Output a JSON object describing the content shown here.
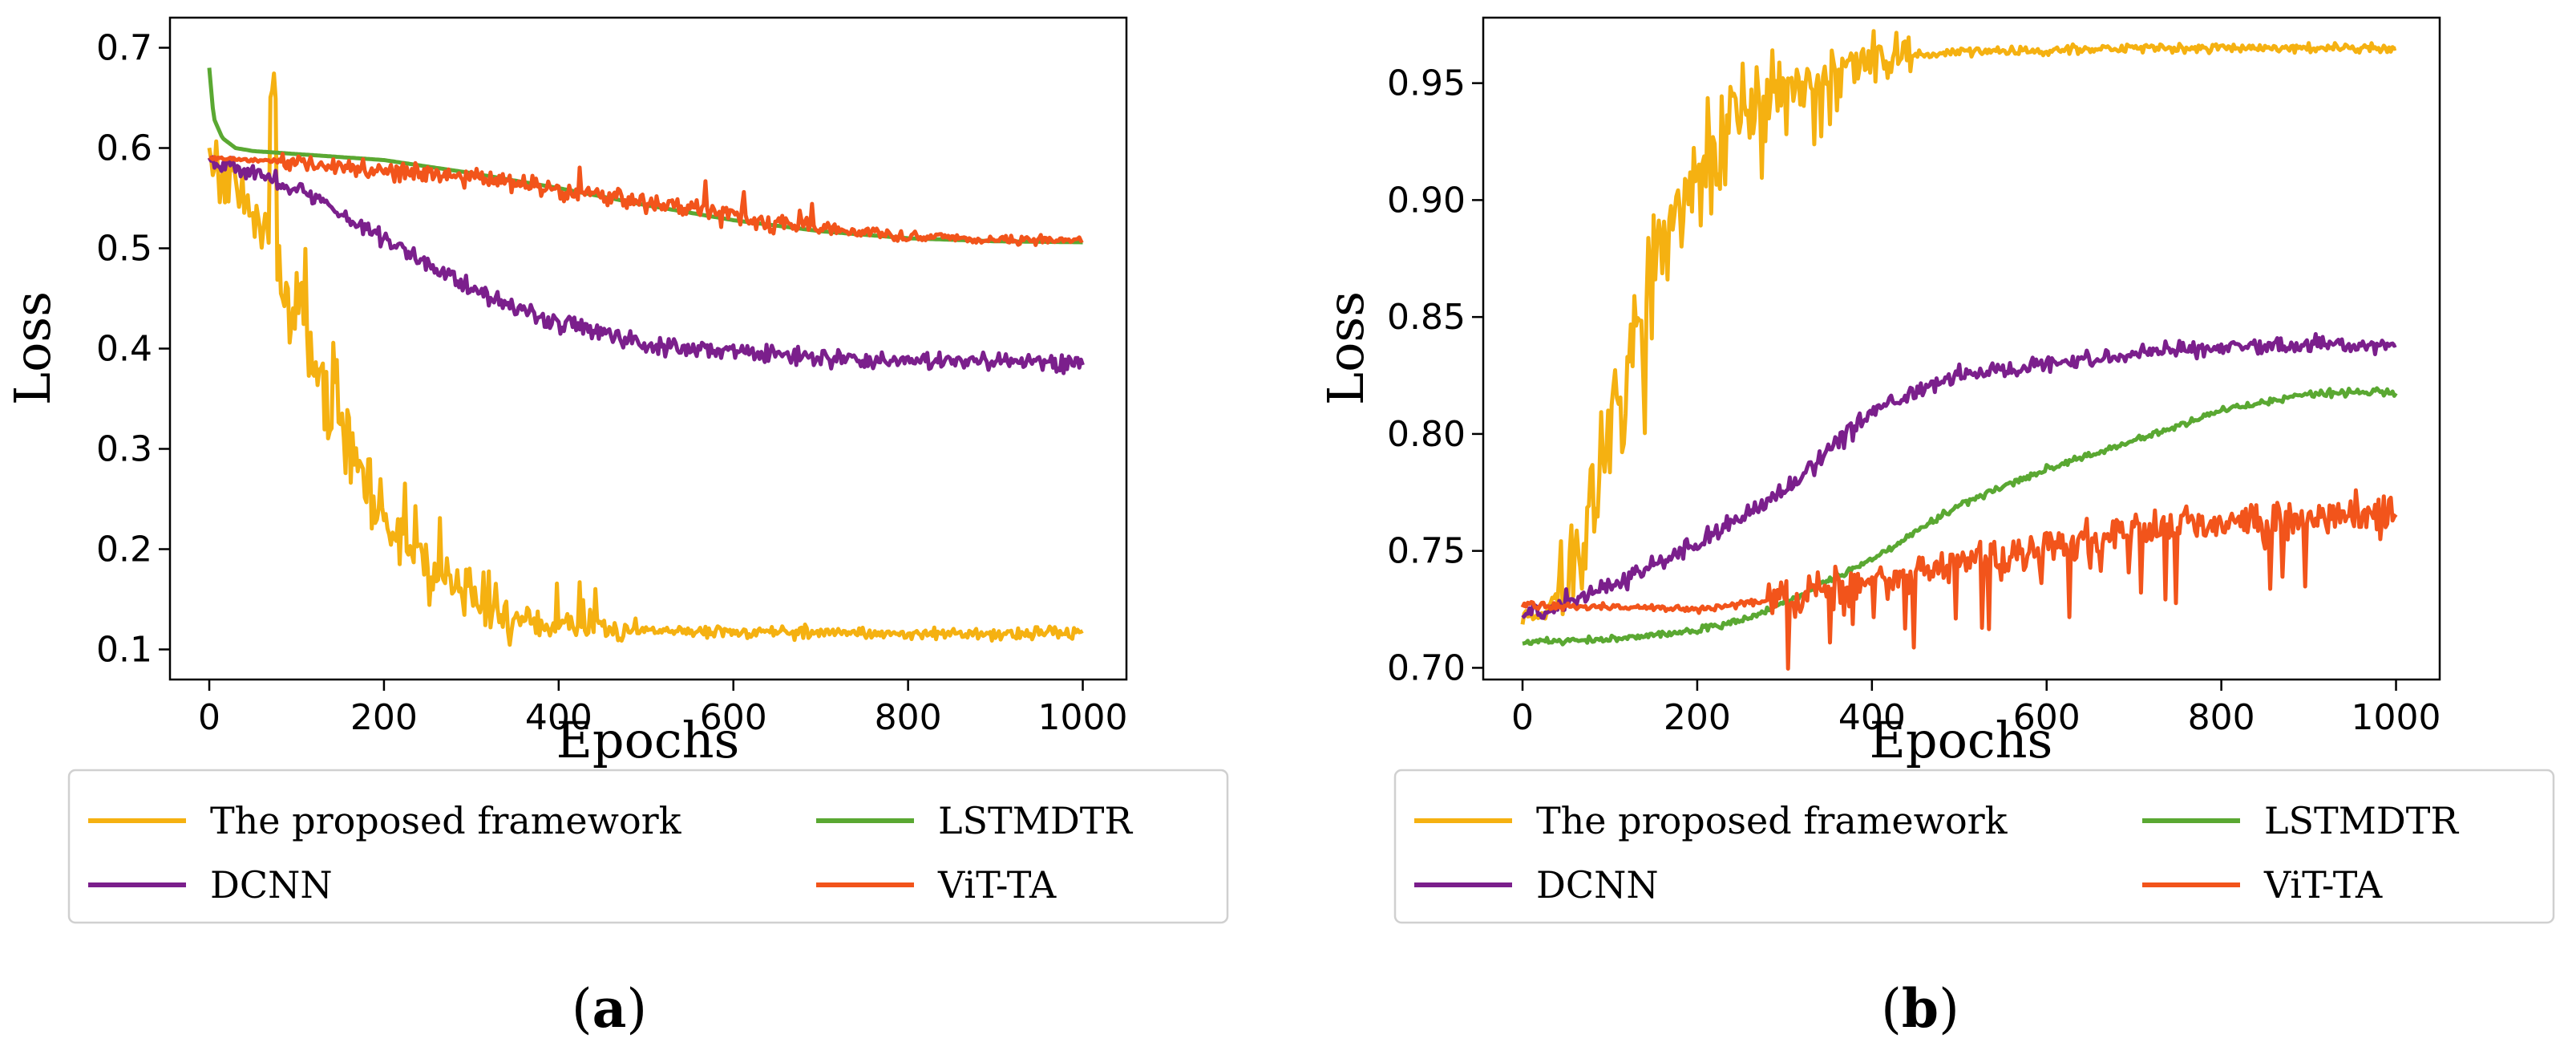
{
  "chart_data": [
    {
      "type": "line",
      "panel_label": "a",
      "title": "",
      "xlabel": "Epochs",
      "ylabel": "Loss",
      "xlim": [
        -45,
        1050
      ],
      "ylim": [
        0.07,
        0.73
      ],
      "xticks": [
        0,
        200,
        400,
        600,
        800,
        1000
      ],
      "xtick_labels": [
        "0",
        "200",
        "400",
        "600",
        "800",
        "1000"
      ],
      "yticks": [
        0.1,
        0.2,
        0.3,
        0.4,
        0.5,
        0.6,
        0.7
      ],
      "ytick_labels": [
        "0.1",
        "0.2",
        "0.3",
        "0.4",
        "0.5",
        "0.6",
        "0.7"
      ],
      "grid": false,
      "legend_position": "below",
      "series": [
        {
          "name": "The proposed framework",
          "color": "#f5b111",
          "noise": "yellow_a",
          "x": [
            0,
            20,
            40,
            60,
            80,
            100,
            150,
            200,
            250,
            300,
            350,
            400,
            500,
            600,
            700,
            800,
            900,
            1000
          ],
          "y": [
            0.59,
            0.57,
            0.55,
            0.52,
            0.48,
            0.44,
            0.32,
            0.23,
            0.18,
            0.15,
            0.13,
            0.123,
            0.118,
            0.117,
            0.117,
            0.116,
            0.116,
            0.116
          ]
        },
        {
          "name": "DCNN",
          "color": "#7b1f8c",
          "noise": "small",
          "x": [
            0,
            100,
            200,
            300,
            400,
            500,
            600,
            700,
            800,
            900,
            1000
          ],
          "y": [
            0.59,
            0.56,
            0.51,
            0.46,
            0.425,
            0.405,
            0.397,
            0.39,
            0.388,
            0.387,
            0.386
          ]
        },
        {
          "name": "LSTMDTR",
          "color": "#5aa832",
          "noise": "none",
          "x": [
            0,
            5,
            15,
            30,
            50,
            100,
            200,
            300,
            400,
            500,
            600,
            700,
            800,
            900,
            1000
          ],
          "y": [
            0.68,
            0.63,
            0.61,
            0.6,
            0.597,
            0.594,
            0.588,
            0.575,
            0.56,
            0.543,
            0.528,
            0.517,
            0.51,
            0.507,
            0.506
          ]
        },
        {
          "name": "ViT-TA",
          "color": "#f2541b",
          "noise": "orange_a",
          "x": [
            0,
            100,
            200,
            300,
            400,
            500,
            600,
            700,
            800,
            900,
            1000
          ],
          "y": [
            0.59,
            0.586,
            0.578,
            0.57,
            0.558,
            0.545,
            0.532,
            0.52,
            0.512,
            0.509,
            0.508
          ]
        }
      ]
    },
    {
      "type": "line",
      "panel_label": "b",
      "title": "",
      "xlabel": "Epochs",
      "ylabel": "Loss",
      "xlim": [
        -45,
        1050
      ],
      "ylim": [
        0.695,
        0.978
      ],
      "xticks": [
        0,
        200,
        400,
        600,
        800,
        1000
      ],
      "xtick_labels": [
        "0",
        "200",
        "400",
        "600",
        "800",
        "1000"
      ],
      "yticks": [
        0.7,
        0.75,
        0.8,
        0.85,
        0.9,
        0.95
      ],
      "ytick_labels": [
        "0.70",
        "0.75",
        "0.80",
        "0.85",
        "0.90",
        "0.95"
      ],
      "grid": false,
      "legend_position": "below",
      "series": [
        {
          "name": "The proposed framework",
          "color": "#f5b111",
          "noise": "yellow_b",
          "x": [
            0,
            30,
            60,
            100,
            150,
            200,
            250,
            300,
            350,
            400,
            450,
            500,
            600,
            700,
            800,
            900,
            1000
          ],
          "y": [
            0.722,
            0.725,
            0.75,
            0.8,
            0.87,
            0.91,
            0.935,
            0.948,
            0.955,
            0.959,
            0.962,
            0.963,
            0.964,
            0.965,
            0.965,
            0.965,
            0.965
          ]
        },
        {
          "name": "DCNN",
          "color": "#7b1f8c",
          "noise": "small",
          "x": [
            0,
            100,
            200,
            300,
            400,
            500,
            600,
            700,
            800,
            900,
            1000
          ],
          "y": [
            0.722,
            0.735,
            0.753,
            0.775,
            0.81,
            0.825,
            0.83,
            0.835,
            0.837,
            0.838,
            0.838
          ]
        },
        {
          "name": "LSTMDTR",
          "color": "#5aa832",
          "noise": "tiny",
          "x": [
            0,
            100,
            200,
            250,
            300,
            400,
            500,
            600,
            700,
            800,
            900,
            1000
          ],
          "y": [
            0.711,
            0.712,
            0.716,
            0.72,
            0.728,
            0.746,
            0.77,
            0.785,
            0.797,
            0.81,
            0.817,
            0.818
          ]
        },
        {
          "name": "ViT-TA",
          "color": "#f2541b",
          "noise": "orange_b",
          "x": [
            0,
            100,
            200,
            300,
            400,
            500,
            600,
            700,
            800,
            900,
            1000
          ],
          "y": [
            0.727,
            0.726,
            0.725,
            0.73,
            0.737,
            0.745,
            0.752,
            0.758,
            0.762,
            0.764,
            0.766
          ]
        }
      ]
    }
  ]
}
